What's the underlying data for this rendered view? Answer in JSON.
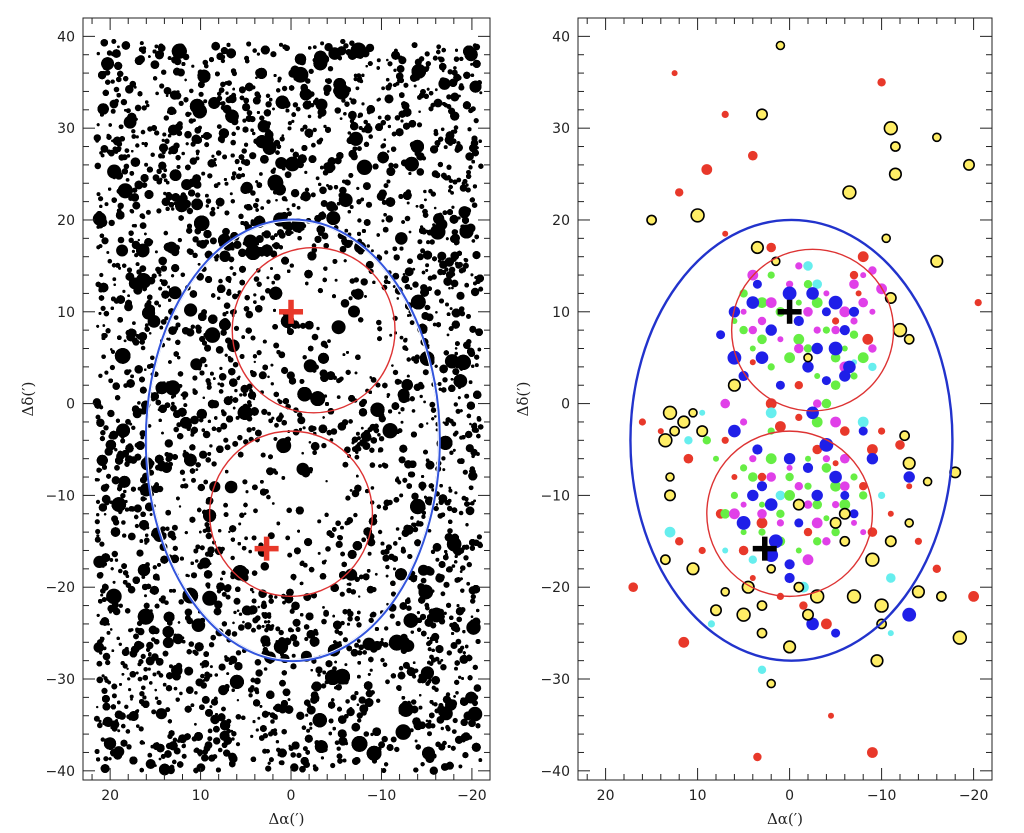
{
  "chart_data": [
    {
      "type": "scatter",
      "panel": "left",
      "xlabel": "Δα(′)",
      "ylabel": "Δδ(′)",
      "xlim": [
        23,
        -22
      ],
      "ylim": [
        -41,
        42
      ],
      "xticks": [
        20,
        10,
        0,
        -10,
        -20
      ],
      "yticks": [
        40,
        30,
        20,
        10,
        0,
        -10,
        -20,
        -30,
        -40
      ],
      "tick_labels_x": [
        "20",
        "10",
        "0",
        "−10",
        "−20"
      ],
      "tick_labels_y": [
        "40",
        "30",
        "20",
        "10",
        "0",
        "−10",
        "−20",
        "−30",
        "−40"
      ],
      "star_field": {
        "x_range": [
          21.5,
          -21
        ],
        "y_range": [
          -40,
          39.5
        ],
        "color": "#000000",
        "note_density": "dense"
      },
      "ellipse": {
        "cx": -0.2,
        "cy": -4,
        "rx": 16.2,
        "ry": 24,
        "color": "#3355dd"
      },
      "circles": [
        {
          "cx": -2.5,
          "cy": 8,
          "r": 9,
          "color": "#dd3333"
        },
        {
          "cx": 0,
          "cy": -12,
          "r": 9,
          "color": "#dd3333"
        }
      ],
      "markers": [
        {
          "x": 0,
          "y": 10,
          "symbol": "+",
          "color": "#e8382a"
        },
        {
          "x": 2.7,
          "y": -15.8,
          "symbol": "+",
          "color": "#e8382a"
        }
      ]
    },
    {
      "type": "scatter",
      "panel": "right",
      "xlabel": "Δα(′)",
      "ylabel": "Δδ(′)",
      "xlim": [
        23,
        -22
      ],
      "ylim": [
        -41,
        42
      ],
      "xticks": [
        20,
        10,
        0,
        -10,
        -20
      ],
      "yticks": [
        40,
        30,
        20,
        10,
        0,
        -10,
        -20,
        -30,
        -40
      ],
      "tick_labels_x": [
        "20",
        "10",
        "0",
        "−10",
        "−20"
      ],
      "tick_labels_y": [
        "40",
        "30",
        "20",
        "10",
        "0",
        "−10",
        "−20",
        "−30",
        "−40"
      ],
      "ellipse": {
        "cx": -0.2,
        "cy": -4,
        "rx": 17.5,
        "ry": 24,
        "color": "#2233cc"
      },
      "circles": [
        {
          "cx": -2.5,
          "cy": 8,
          "r": 8.8,
          "color": "#dd3333"
        },
        {
          "cx": 0,
          "cy": -12,
          "r": 9,
          "color": "#dd3333"
        }
      ],
      "markers": [
        {
          "x": 0,
          "y": 10,
          "symbol": "+",
          "color": "#000000"
        },
        {
          "x": 2.7,
          "y": -15.8,
          "symbol": "+",
          "color": "#000000"
        }
      ],
      "series_colors": {
        "red": "#e8382a",
        "blue": "#1f1fe8",
        "green": "#66ee44",
        "magenta": "#e040e8",
        "cyan": "#66eeee",
        "yellow": "#ffee66"
      },
      "points": {
        "yellow_outlined": [
          [
            1,
            39
          ],
          [
            3,
            31.5
          ],
          [
            10,
            20.5
          ],
          [
            15,
            20
          ],
          [
            3.5,
            17
          ],
          [
            1.5,
            15.5
          ],
          [
            -1,
            -11
          ],
          [
            -11,
            30
          ],
          [
            -11.5,
            28
          ],
          [
            -11.5,
            25
          ],
          [
            -10.5,
            18
          ],
          [
            -11,
            11.5
          ],
          [
            -12,
            8
          ],
          [
            -13,
            7
          ],
          [
            -16,
            15.5
          ],
          [
            -16,
            29
          ],
          [
            -19.5,
            26
          ],
          [
            -6.5,
            23
          ],
          [
            -12.5,
            -3.5
          ],
          [
            -13,
            -6.5
          ],
          [
            -15,
            -8.5
          ],
          [
            -18,
            -7.5
          ],
          [
            -18.5,
            -25.5
          ],
          [
            -16.5,
            -21
          ],
          [
            -14,
            -20.5
          ],
          [
            -13,
            -13
          ],
          [
            -11,
            -15
          ],
          [
            -10,
            -22
          ],
          [
            -10,
            -24
          ],
          [
            -9.5,
            -28
          ],
          [
            13,
            -8
          ],
          [
            13,
            -10
          ],
          [
            13.5,
            -4
          ],
          [
            12.5,
            -3
          ],
          [
            11.5,
            -2
          ],
          [
            10.5,
            -1
          ],
          [
            9.5,
            -3
          ],
          [
            13,
            -1
          ],
          [
            13.5,
            -17
          ],
          [
            10.5,
            -18
          ],
          [
            7,
            -20.5
          ],
          [
            8,
            -22.5
          ],
          [
            5,
            -23
          ],
          [
            3,
            -25
          ],
          [
            0,
            -26.5
          ],
          [
            2,
            -30.5
          ],
          [
            -2,
            -23
          ],
          [
            -3,
            -21
          ],
          [
            -1,
            -20
          ],
          [
            4.5,
            -20
          ],
          [
            2,
            -18
          ],
          [
            -6,
            -12
          ],
          [
            -9,
            -17
          ],
          [
            -6,
            -15
          ],
          [
            6,
            2
          ],
          [
            -2,
            5
          ],
          [
            -5,
            -13
          ],
          [
            -7,
            -21
          ],
          [
            3,
            -22
          ]
        ],
        "red": [
          [
            12.5,
            36
          ],
          [
            12,
            23
          ],
          [
            9,
            25.5
          ],
          [
            7,
            31.5
          ],
          [
            4,
            27
          ],
          [
            7,
            18.5
          ],
          [
            -10,
            35
          ],
          [
            -8.5,
            7
          ],
          [
            -20.5,
            11
          ],
          [
            -12,
            -4.5
          ],
          [
            14,
            -3
          ],
          [
            12,
            -15
          ],
          [
            11.5,
            -26
          ],
          [
            9.5,
            -16
          ],
          [
            7.5,
            -12
          ],
          [
            6,
            -8
          ],
          [
            3,
            -8
          ],
          [
            1,
            -2.5
          ],
          [
            -1,
            -1.5
          ],
          [
            -3,
            -5
          ],
          [
            -5,
            -6.5
          ],
          [
            -8,
            -9
          ],
          [
            -9,
            -5
          ],
          [
            -10,
            -3
          ],
          [
            -6,
            -3
          ],
          [
            -13,
            -9
          ],
          [
            -16,
            -18
          ],
          [
            -20,
            -21
          ],
          [
            -14,
            -15
          ],
          [
            5,
            -16
          ],
          [
            4,
            -19
          ],
          [
            -1.5,
            -22
          ],
          [
            -4,
            -24
          ],
          [
            1,
            -21
          ],
          [
            -9,
            -14
          ],
          [
            -11,
            -12
          ],
          [
            -2,
            -14
          ],
          [
            3,
            -13
          ],
          [
            7,
            -4
          ],
          [
            11,
            -6
          ],
          [
            -4.5,
            -34
          ],
          [
            3.5,
            -38.5
          ],
          [
            -9,
            -38
          ],
          [
            16,
            -2
          ],
          [
            17,
            -20
          ],
          [
            -7.5,
            12
          ],
          [
            -7,
            14
          ],
          [
            -8,
            16
          ],
          [
            -5,
            9
          ],
          [
            2,
            17
          ],
          [
            4,
            4.5
          ],
          [
            -1,
            2
          ],
          [
            2,
            0
          ]
        ],
        "blue": [
          [
            7.5,
            7.5
          ],
          [
            6,
            10
          ],
          [
            6,
            5
          ],
          [
            5,
            3
          ],
          [
            4,
            11
          ],
          [
            3.5,
            13
          ],
          [
            2,
            8
          ],
          [
            0,
            12
          ],
          [
            -1,
            9
          ],
          [
            -2.5,
            12
          ],
          [
            -4,
            10
          ],
          [
            -3,
            6
          ],
          [
            -5,
            6
          ],
          [
            -6,
            8
          ],
          [
            -6.5,
            4
          ],
          [
            -4,
            2.5
          ],
          [
            -2,
            4
          ],
          [
            -5,
            11
          ],
          [
            -7,
            10
          ],
          [
            3,
            5
          ],
          [
            1,
            2
          ],
          [
            4,
            -10
          ],
          [
            5,
            -13
          ],
          [
            3,
            -9
          ],
          [
            2,
            -11
          ],
          [
            -1,
            -13
          ],
          [
            -3,
            -10
          ],
          [
            -4,
            -4.5
          ],
          [
            -2,
            -7
          ],
          [
            -5,
            -8
          ],
          [
            -6,
            -10
          ],
          [
            0,
            -6
          ],
          [
            1.5,
            -15
          ],
          [
            0,
            -17.5
          ],
          [
            -2.5,
            -24
          ],
          [
            -5,
            -25
          ],
          [
            -13,
            -8
          ],
          [
            -13,
            -23
          ],
          [
            3.5,
            -5
          ],
          [
            -2.5,
            -1
          ],
          [
            -7,
            -12
          ],
          [
            -9,
            -6
          ],
          [
            2,
            -16.5
          ],
          [
            0,
            -19
          ],
          [
            6,
            -3
          ],
          [
            -8,
            -3
          ],
          [
            -6,
            3
          ]
        ],
        "green": [
          [
            6,
            9
          ],
          [
            5,
            12
          ],
          [
            3,
            11
          ],
          [
            2,
            14
          ],
          [
            1,
            10
          ],
          [
            -1,
            11
          ],
          [
            -2,
            13
          ],
          [
            -3,
            11
          ],
          [
            -4,
            8
          ],
          [
            -5,
            5
          ],
          [
            -6,
            6
          ],
          [
            -7,
            7.5
          ],
          [
            -8,
            5
          ],
          [
            -7,
            3
          ],
          [
            -5,
            2
          ],
          [
            -3,
            3
          ],
          [
            -2,
            6
          ],
          [
            0,
            5
          ],
          [
            2,
            4
          ],
          [
            3,
            7
          ],
          [
            4,
            6
          ],
          [
            5,
            8
          ],
          [
            -1,
            7
          ],
          [
            5,
            -7
          ],
          [
            4,
            -8
          ],
          [
            3,
            -11
          ],
          [
            1,
            -12
          ],
          [
            0,
            -10
          ],
          [
            -2,
            -9
          ],
          [
            -3,
            -11
          ],
          [
            -4,
            -12.5
          ],
          [
            -5,
            -14
          ],
          [
            -6,
            -11
          ],
          [
            -7,
            -8
          ],
          [
            -4,
            -7
          ],
          [
            -2,
            -6
          ],
          [
            0,
            -8
          ],
          [
            2,
            -6
          ],
          [
            3,
            -14
          ],
          [
            1,
            -15
          ],
          [
            -1,
            -16
          ],
          [
            -3,
            -15
          ],
          [
            -5,
            -9
          ],
          [
            6,
            -10
          ],
          [
            7,
            -12
          ],
          [
            5,
            -14
          ],
          [
            -8,
            -10
          ],
          [
            -3,
            -2
          ],
          [
            2,
            -3
          ],
          [
            -4,
            0
          ],
          [
            8,
            -6
          ],
          [
            9,
            -4
          ]
        ],
        "magenta": [
          [
            5,
            10
          ],
          [
            4,
            8
          ],
          [
            2,
            11
          ],
          [
            0,
            13
          ],
          [
            -2,
            10
          ],
          [
            -4,
            12
          ],
          [
            -5,
            8
          ],
          [
            -6,
            10
          ],
          [
            -7,
            9
          ],
          [
            -8,
            11
          ],
          [
            -9,
            10
          ],
          [
            -9,
            6
          ],
          [
            -6,
            4
          ],
          [
            -3,
            8
          ],
          [
            -1,
            6
          ],
          [
            1,
            7
          ],
          [
            3,
            9
          ],
          [
            4,
            14
          ],
          [
            -1,
            15
          ],
          [
            -7,
            13
          ],
          [
            -8,
            14
          ],
          [
            -9,
            14.5
          ],
          [
            -10,
            12.5
          ],
          [
            4,
            -6
          ],
          [
            2,
            -8
          ],
          [
            0,
            -7
          ],
          [
            -2,
            -11
          ],
          [
            -3,
            -13
          ],
          [
            -5,
            -11
          ],
          [
            -6,
            -9
          ],
          [
            -7,
            -13
          ],
          [
            -4,
            -15
          ],
          [
            -2,
            -17
          ],
          [
            1,
            -13
          ],
          [
            3,
            -12
          ],
          [
            5,
            -11
          ],
          [
            -1,
            -9
          ],
          [
            6,
            -12
          ],
          [
            -4,
            -6
          ],
          [
            -6,
            -6
          ],
          [
            -8,
            -14
          ],
          [
            -3,
            0
          ],
          [
            -5,
            -2
          ],
          [
            5,
            -2
          ],
          [
            7,
            0
          ]
        ],
        "cyan": [
          [
            9.5,
            -1
          ],
          [
            11,
            -4
          ],
          [
            13,
            -14
          ],
          [
            4,
            8
          ],
          [
            -2,
            15
          ],
          [
            -7,
            4.5
          ],
          [
            -9,
            4
          ],
          [
            -8,
            -2
          ],
          [
            -10,
            -10
          ],
          [
            -11,
            -19
          ],
          [
            -11,
            -25
          ],
          [
            3,
            -29
          ],
          [
            2,
            -1
          ],
          [
            -6,
            -12
          ],
          [
            1,
            -10
          ],
          [
            7,
            -16
          ],
          [
            4,
            -17
          ],
          [
            -1.5,
            -20
          ],
          [
            8.5,
            -24
          ],
          [
            -3,
            13
          ]
        ]
      }
    }
  ]
}
